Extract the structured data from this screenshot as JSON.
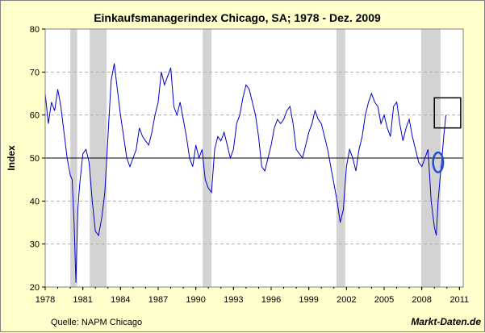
{
  "chart_data": {
    "type": "line",
    "title": "Einkaufsmanagerindex Chicago, SA; 1978 -  Dez. 2009",
    "ylabel": "Index",
    "xlabel": "",
    "xlim": [
      1978,
      2011.3
    ],
    "ylim": [
      20,
      80
    ],
    "x_ticks": [
      1978,
      1981,
      1984,
      1987,
      1990,
      1993,
      1996,
      1999,
      2002,
      2005,
      2008,
      2011
    ],
    "y_ticks": [
      20,
      30,
      40,
      50,
      60,
      70,
      80
    ],
    "grid": "horizontal dashed",
    "reference_line": 50,
    "recessions": [
      [
        1980.0,
        1980.55
      ],
      [
        1981.55,
        1982.9
      ],
      [
        1990.55,
        1991.25
      ],
      [
        2001.2,
        2001.9
      ],
      [
        2007.95,
        2009.5
      ]
    ],
    "annotations": [
      {
        "shape": "rectangle",
        "x": [
          2009.0,
          2011.1
        ],
        "y": [
          57,
          64
        ]
      },
      {
        "shape": "ellipse",
        "cx": 2009.3,
        "cy": 49,
        "rx": 0.4,
        "ry": 2.3
      }
    ],
    "series": [
      {
        "color": "#0000cc",
        "x": [
          1978.0,
          1978.25,
          1978.5,
          1978.75,
          1979.0,
          1979.25,
          1979.5,
          1979.75,
          1980.0,
          1980.15,
          1980.3,
          1980.45,
          1980.6,
          1980.75,
          1981.0,
          1981.25,
          1981.5,
          1981.75,
          1982.0,
          1982.25,
          1982.5,
          1982.75,
          1983.0,
          1983.25,
          1983.5,
          1983.75,
          1984.0,
          1984.25,
          1984.5,
          1984.75,
          1985.0,
          1985.25,
          1985.5,
          1985.75,
          1986.0,
          1986.25,
          1986.5,
          1986.75,
          1987.0,
          1987.25,
          1987.5,
          1987.75,
          1988.0,
          1988.25,
          1988.5,
          1988.75,
          1989.0,
          1989.25,
          1989.5,
          1989.75,
          1990.0,
          1990.25,
          1990.5,
          1990.75,
          1991.0,
          1991.25,
          1991.5,
          1991.75,
          1992.0,
          1992.25,
          1992.5,
          1992.75,
          1993.0,
          1993.25,
          1993.5,
          1993.75,
          1994.0,
          1994.25,
          1994.5,
          1994.75,
          1995.0,
          1995.25,
          1995.5,
          1995.75,
          1996.0,
          1996.25,
          1996.5,
          1996.75,
          1997.0,
          1997.25,
          1997.5,
          1997.75,
          1998.0,
          1998.25,
          1998.5,
          1998.75,
          1999.0,
          1999.25,
          1999.5,
          1999.75,
          2000.0,
          2000.25,
          2000.5,
          2000.75,
          2001.0,
          2001.25,
          2001.5,
          2001.75,
          2002.0,
          2002.25,
          2002.5,
          2002.75,
          2003.0,
          2003.25,
          2003.5,
          2003.75,
          2004.0,
          2004.25,
          2004.5,
          2004.75,
          2005.0,
          2005.25,
          2005.5,
          2005.75,
          2006.0,
          2006.25,
          2006.5,
          2006.75,
          2007.0,
          2007.25,
          2007.5,
          2007.75,
          2008.0,
          2008.25,
          2008.5,
          2008.75,
          2009.0,
          2009.15,
          2009.3,
          2009.45,
          2009.6,
          2009.75,
          2009.92
        ],
        "y": [
          65,
          58,
          63,
          61,
          66,
          62,
          56,
          50,
          46,
          45,
          35,
          21,
          38,
          44,
          51,
          52,
          49,
          40,
          33,
          32,
          36,
          42,
          55,
          68,
          72,
          66,
          60,
          55,
          50,
          48,
          50,
          52,
          57,
          55,
          54,
          53,
          56,
          60,
          63,
          70,
          67,
          69,
          71,
          62,
          60,
          63,
          59,
          55,
          50,
          48,
          53,
          50,
          52,
          45,
          43,
          42,
          52,
          55,
          54,
          56,
          53,
          50,
          52,
          58,
          60,
          64,
          67,
          66,
          63,
          60,
          55,
          48,
          47,
          50,
          53,
          57,
          59,
          58,
          59,
          61,
          62,
          58,
          52,
          51,
          50,
          53,
          56,
          58,
          61,
          59,
          58,
          55,
          52,
          48,
          44,
          40,
          35,
          38,
          48,
          52,
          50,
          47,
          52,
          55,
          60,
          63,
          65,
          63,
          62,
          58,
          60,
          57,
          55,
          62,
          63,
          58,
          54,
          57,
          59,
          55,
          52,
          49,
          48,
          50,
          52,
          40,
          34,
          32,
          40,
          45,
          50,
          55,
          60
        ]
      }
    ],
    "source": "Quelle: NAPM Chicago",
    "brand": "Markt-Daten.de"
  }
}
